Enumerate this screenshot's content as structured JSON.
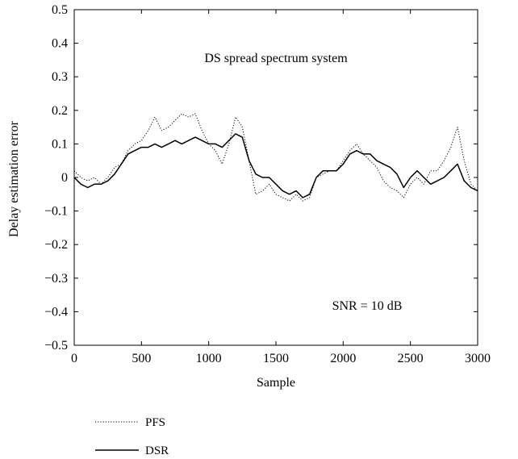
{
  "chart_data": {
    "type": "line",
    "title": "DS spread spectrum system",
    "annotation": "SNR = 10 dB",
    "xlabel": "Sample",
    "ylabel": "Delay estimation error",
    "xlim": [
      0,
      3000
    ],
    "ylim": [
      -0.5,
      0.5
    ],
    "xticks": [
      0,
      500,
      1000,
      1500,
      2000,
      2500,
      3000
    ],
    "yticks": [
      -0.5,
      -0.4,
      -0.3,
      -0.2,
      -0.1,
      0,
      0.1,
      0.2,
      0.3,
      0.4,
      0.5
    ],
    "xtick_labels": [
      "0",
      "500",
      "1000",
      "1500",
      "2000",
      "2500",
      "3000"
    ],
    "ytick_labels": [
      "−0.5",
      "−0.4",
      "−0.3",
      "−0.2",
      "−0.1",
      "0",
      "0.1",
      "0.2",
      "0.3",
      "0.4",
      "0.5"
    ],
    "grid": false,
    "legend_position": "below-left",
    "series": [
      {
        "name": "PFS",
        "style": "dotted",
        "color": "#000000",
        "x": [
          0,
          50,
          100,
          150,
          200,
          250,
          300,
          350,
          400,
          450,
          500,
          550,
          600,
          650,
          700,
          750,
          800,
          850,
          900,
          950,
          1000,
          1050,
          1100,
          1150,
          1200,
          1250,
          1300,
          1350,
          1400,
          1450,
          1500,
          1550,
          1600,
          1650,
          1700,
          1750,
          1800,
          1850,
          1900,
          1950,
          2000,
          2050,
          2100,
          2150,
          2200,
          2250,
          2300,
          2350,
          2400,
          2450,
          2500,
          2550,
          2600,
          2650,
          2700,
          2750,
          2800,
          2850,
          2900,
          2950,
          3000
        ],
        "y": [
          0.02,
          0.0,
          -0.01,
          0.0,
          -0.02,
          0.0,
          0.03,
          0.04,
          0.08,
          0.1,
          0.11,
          0.14,
          0.18,
          0.14,
          0.15,
          0.17,
          0.19,
          0.18,
          0.19,
          0.14,
          0.1,
          0.08,
          0.04,
          0.1,
          0.18,
          0.15,
          0.05,
          -0.05,
          -0.04,
          -0.02,
          -0.05,
          -0.06,
          -0.07,
          -0.05,
          -0.07,
          -0.06,
          0.0,
          0.01,
          0.02,
          0.02,
          0.05,
          0.08,
          0.1,
          0.07,
          0.05,
          0.03,
          -0.01,
          -0.03,
          -0.04,
          -0.06,
          -0.02,
          0.0,
          -0.02,
          0.02,
          0.02,
          0.05,
          0.09,
          0.15,
          0.05,
          -0.02,
          -0.04
        ]
      },
      {
        "name": "DSR",
        "style": "solid",
        "color": "#000000",
        "x": [
          0,
          50,
          100,
          150,
          200,
          250,
          300,
          350,
          400,
          450,
          500,
          550,
          600,
          650,
          700,
          750,
          800,
          850,
          900,
          950,
          1000,
          1050,
          1100,
          1150,
          1200,
          1250,
          1300,
          1350,
          1400,
          1450,
          1500,
          1550,
          1600,
          1650,
          1700,
          1750,
          1800,
          1850,
          1900,
          1950,
          2000,
          2050,
          2100,
          2150,
          2200,
          2250,
          2300,
          2350,
          2400,
          2450,
          2500,
          2550,
          2600,
          2650,
          2700,
          2750,
          2800,
          2850,
          2900,
          2950,
          3000
        ],
        "y": [
          0.0,
          -0.02,
          -0.03,
          -0.02,
          -0.02,
          -0.01,
          0.01,
          0.04,
          0.07,
          0.08,
          0.09,
          0.09,
          0.1,
          0.09,
          0.1,
          0.11,
          0.1,
          0.11,
          0.12,
          0.11,
          0.1,
          0.1,
          0.09,
          0.11,
          0.13,
          0.12,
          0.05,
          0.01,
          0.0,
          0.0,
          -0.02,
          -0.04,
          -0.05,
          -0.04,
          -0.06,
          -0.05,
          0.0,
          0.02,
          0.02,
          0.02,
          0.04,
          0.07,
          0.08,
          0.07,
          0.07,
          0.05,
          0.04,
          0.03,
          0.01,
          -0.03,
          0.0,
          0.02,
          0.0,
          -0.02,
          -0.01,
          0.0,
          0.02,
          0.04,
          -0.01,
          -0.03,
          -0.04
        ]
      }
    ]
  }
}
